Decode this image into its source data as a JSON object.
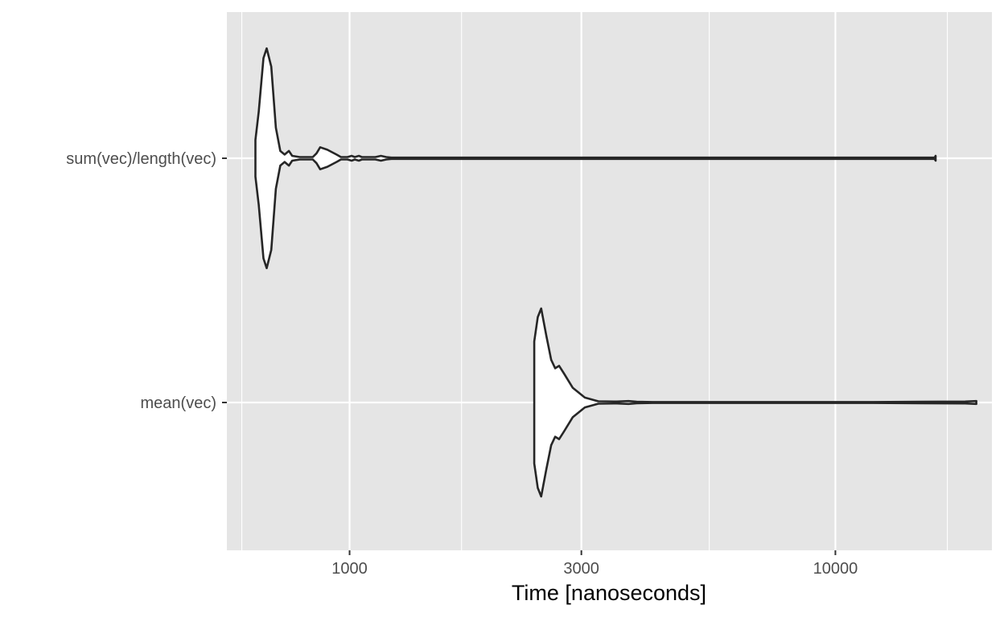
{
  "chart_data": {
    "type": "violin",
    "orientation": "horizontal",
    "title": "",
    "xlabel": "Time [nanoseconds]",
    "ylabel": "",
    "x_scale": "log10",
    "xlim": [
      559,
      21000
    ],
    "x_ticks": [
      {
        "value": 1000,
        "label": "1000"
      },
      {
        "value": 3000,
        "label": "3000"
      },
      {
        "value": 10000,
        "label": "10000"
      }
    ],
    "x_minor_gridlines": [
      600,
      1700,
      5500,
      17000
    ],
    "categories": [
      "sum(vec)/length(vec)",
      "mean(vec)"
    ],
    "grid": true,
    "legend": "none",
    "colors": {
      "panel_background": "#e5e5e5",
      "gridline": "#ffffff",
      "violin_fill": "#ffffff",
      "violin_outline": "#262626",
      "tick_text": "#4d4d4d",
      "axis_title_text": "#000000"
    },
    "series": [
      {
        "category": "sum(vec)/length(vec)",
        "min": 640,
        "max": 16000,
        "density_profile": [
          [
            640,
            0.15
          ],
          [
            650,
            0.38
          ],
          [
            665,
            0.82
          ],
          [
            675,
            0.9
          ],
          [
            690,
            0.75
          ],
          [
            705,
            0.25
          ],
          [
            720,
            0.06
          ],
          [
            735,
            0.03
          ],
          [
            750,
            0.06
          ],
          [
            762,
            0.02
          ],
          [
            790,
            0.01
          ],
          [
            840,
            0.01
          ],
          [
            855,
            0.04
          ],
          [
            870,
            0.09
          ],
          [
            900,
            0.07
          ],
          [
            940,
            0.03
          ],
          [
            960,
            0.01
          ],
          [
            990,
            0.01
          ],
          [
            1010,
            0.02
          ],
          [
            1025,
            0.01
          ],
          [
            1045,
            0.02
          ],
          [
            1060,
            0.01
          ],
          [
            1130,
            0.01
          ],
          [
            1160,
            0.02
          ],
          [
            1190,
            0.01
          ],
          [
            1220,
            0.005
          ],
          [
            16000,
            0.005
          ],
          [
            16080,
            0.02
          ]
        ]
      },
      {
        "category": "mean(vec)",
        "min": 2400,
        "max": 19500,
        "density_profile": [
          [
            2400,
            0.5
          ],
          [
            2440,
            0.7
          ],
          [
            2480,
            0.77
          ],
          [
            2540,
            0.55
          ],
          [
            2600,
            0.35
          ],
          [
            2650,
            0.28
          ],
          [
            2700,
            0.3
          ],
          [
            2760,
            0.24
          ],
          [
            2880,
            0.12
          ],
          [
            3050,
            0.04
          ],
          [
            3250,
            0.01
          ],
          [
            3550,
            0.008
          ],
          [
            3750,
            0.012
          ],
          [
            3900,
            0.006
          ],
          [
            4200,
            0.004
          ],
          [
            7000,
            0.004
          ],
          [
            12000,
            0.004
          ],
          [
            18500,
            0.008
          ],
          [
            19500,
            0.012
          ]
        ]
      }
    ]
  }
}
